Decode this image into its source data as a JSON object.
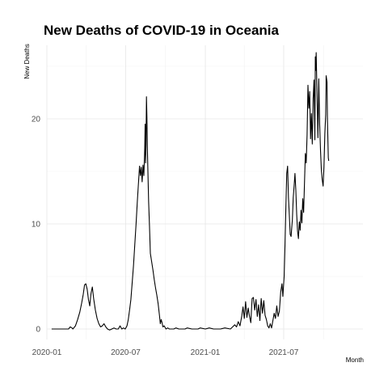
{
  "chart_data": {
    "type": "line",
    "title": "New Deaths of COVID-19 in Oceania",
    "xlabel": "Month",
    "ylabel": "New Deaths",
    "x_tick_labels": [
      "2020-01",
      "2020-07",
      "2021-01",
      "2021-07"
    ],
    "y_tick_labels": [
      "0",
      "10",
      "20"
    ],
    "y_ticks": [
      0,
      10,
      20
    ],
    "xlim": [
      "2020-01-01",
      "2021-12-31"
    ],
    "ylim": [
      -1,
      27
    ],
    "grid": true,
    "series": [
      {
        "color": "#000000",
        "points": [
          [
            "2020-01-12",
            0
          ],
          [
            "2020-02-20",
            0
          ],
          [
            "2020-02-24",
            0.2
          ],
          [
            "2020-02-28",
            0.1
          ],
          [
            "2020-03-01",
            0
          ],
          [
            "2020-03-07",
            0.3
          ],
          [
            "2020-03-12",
            0.9
          ],
          [
            "2020-03-17",
            1.6
          ],
          [
            "2020-03-21",
            2.4
          ],
          [
            "2020-03-25",
            3.3
          ],
          [
            "2020-03-28",
            4.2
          ],
          [
            "2020-03-31",
            4.3
          ],
          [
            "2020-04-03",
            3.8
          ],
          [
            "2020-04-06",
            2.8
          ],
          [
            "2020-04-09",
            2.2
          ],
          [
            "2020-04-12",
            3.4
          ],
          [
            "2020-04-15",
            4.0
          ],
          [
            "2020-04-18",
            2.9
          ],
          [
            "2020-04-22",
            1.8
          ],
          [
            "2020-04-26",
            1.0
          ],
          [
            "2020-04-30",
            0.5
          ],
          [
            "2020-05-04",
            0.2
          ],
          [
            "2020-05-08",
            0.3
          ],
          [
            "2020-05-12",
            0.5
          ],
          [
            "2020-05-16",
            0.2
          ],
          [
            "2020-05-20",
            0
          ],
          [
            "2020-05-25",
            -0.1
          ],
          [
            "2020-05-30",
            0
          ],
          [
            "2020-06-04",
            0.1
          ],
          [
            "2020-06-09",
            0
          ],
          [
            "2020-06-14",
            0
          ],
          [
            "2020-06-18",
            0.3
          ],
          [
            "2020-06-22",
            0
          ],
          [
            "2020-06-26",
            0.1
          ],
          [
            "2020-06-30",
            0
          ],
          [
            "2020-07-04",
            0.3
          ],
          [
            "2020-07-07",
            0.9
          ],
          [
            "2020-07-10",
            1.8
          ],
          [
            "2020-07-13",
            2.8
          ],
          [
            "2020-07-16",
            4.4
          ],
          [
            "2020-07-19",
            6.0
          ],
          [
            "2020-07-22",
            8.0
          ],
          [
            "2020-07-25",
            10.0
          ],
          [
            "2020-07-28",
            12.2
          ],
          [
            "2020-07-31",
            14.2
          ],
          [
            "2020-08-02",
            15.5
          ],
          [
            "2020-08-04",
            14.6
          ],
          [
            "2020-08-06",
            15.4
          ],
          [
            "2020-08-08",
            14.0
          ],
          [
            "2020-08-10",
            15.6
          ],
          [
            "2020-08-12",
            14.6
          ],
          [
            "2020-08-14",
            17.2
          ],
          [
            "2020-08-15",
            19.5
          ],
          [
            "2020-08-16",
            15.8
          ],
          [
            "2020-08-17",
            17.6
          ],
          [
            "2020-08-18",
            22.1
          ],
          [
            "2020-08-19",
            20.2
          ],
          [
            "2020-08-20",
            17.4
          ],
          [
            "2020-08-21",
            15.6
          ],
          [
            "2020-08-23",
            12.1
          ],
          [
            "2020-08-25",
            9.8
          ],
          [
            "2020-08-27",
            7.2
          ],
          [
            "2020-08-30",
            6.4
          ],
          [
            "2020-09-02",
            5.6
          ],
          [
            "2020-09-05",
            4.7
          ],
          [
            "2020-09-08",
            3.9
          ],
          [
            "2020-09-11",
            3.2
          ],
          [
            "2020-09-14",
            2.4
          ],
          [
            "2020-09-17",
            1.3
          ],
          [
            "2020-09-19",
            0.5
          ],
          [
            "2020-09-21",
            0.9
          ],
          [
            "2020-09-23",
            0.6
          ],
          [
            "2020-09-25",
            0.2
          ],
          [
            "2020-09-28",
            0.3
          ],
          [
            "2020-10-02",
            0
          ],
          [
            "2020-10-06",
            0.1
          ],
          [
            "2020-10-10",
            0
          ],
          [
            "2020-10-20",
            0
          ],
          [
            "2020-10-25",
            0.1
          ],
          [
            "2020-11-01",
            0
          ],
          [
            "2020-11-15",
            0
          ],
          [
            "2020-11-20",
            0.1
          ],
          [
            "2020-12-01",
            0
          ],
          [
            "2020-12-15",
            0
          ],
          [
            "2020-12-20",
            0.1
          ],
          [
            "2021-01-01",
            0
          ],
          [
            "2021-01-10",
            0.1
          ],
          [
            "2021-01-20",
            0
          ],
          [
            "2021-02-05",
            0
          ],
          [
            "2021-02-15",
            0.1
          ],
          [
            "2021-02-28",
            0
          ],
          [
            "2021-03-05",
            0.2
          ],
          [
            "2021-03-10",
            0.4
          ],
          [
            "2021-03-14",
            0.2
          ],
          [
            "2021-03-18",
            0.7
          ],
          [
            "2021-03-22",
            0.3
          ],
          [
            "2021-03-26",
            1.2
          ],
          [
            "2021-03-29",
            2.1
          ],
          [
            "2021-04-01",
            1.0
          ],
          [
            "2021-04-04",
            2.6
          ],
          [
            "2021-04-07",
            1.1
          ],
          [
            "2021-04-10",
            2.0
          ],
          [
            "2021-04-13",
            1.2
          ],
          [
            "2021-04-16",
            0.6
          ],
          [
            "2021-04-19",
            2.9
          ],
          [
            "2021-04-22",
            3.0
          ],
          [
            "2021-04-25",
            1.8
          ],
          [
            "2021-04-28",
            2.8
          ],
          [
            "2021-05-01",
            1.2
          ],
          [
            "2021-05-04",
            2.3
          ],
          [
            "2021-05-07",
            0.8
          ],
          [
            "2021-05-10",
            2.9
          ],
          [
            "2021-05-13",
            1.5
          ],
          [
            "2021-05-16",
            2.7
          ],
          [
            "2021-05-19",
            1.3
          ],
          [
            "2021-05-22",
            0.9
          ],
          [
            "2021-05-25",
            0.3
          ],
          [
            "2021-05-28",
            0.1
          ],
          [
            "2021-05-31",
            0.5
          ],
          [
            "2021-06-03",
            0.1
          ],
          [
            "2021-06-06",
            0.8
          ],
          [
            "2021-06-09",
            1.5
          ],
          [
            "2021-06-12",
            1.0
          ],
          [
            "2021-06-15",
            2.2
          ],
          [
            "2021-06-18",
            1.2
          ],
          [
            "2021-06-21",
            1.7
          ],
          [
            "2021-06-24",
            3.5
          ],
          [
            "2021-06-27",
            4.3
          ],
          [
            "2021-06-29",
            3.1
          ],
          [
            "2021-07-02",
            5.0
          ],
          [
            "2021-07-04",
            8.0
          ],
          [
            "2021-07-06",
            11.6
          ],
          [
            "2021-07-08",
            14.8
          ],
          [
            "2021-07-10",
            15.5
          ],
          [
            "2021-07-12",
            12.5
          ],
          [
            "2021-07-14",
            10.8
          ],
          [
            "2021-07-16",
            9.0
          ],
          [
            "2021-07-18",
            8.8
          ],
          [
            "2021-07-21",
            10.4
          ],
          [
            "2021-07-23",
            12.5
          ],
          [
            "2021-07-25",
            13.6
          ],
          [
            "2021-07-27",
            14.8
          ],
          [
            "2021-07-29",
            13.2
          ],
          [
            "2021-07-31",
            10.9
          ],
          [
            "2021-08-02",
            9.3
          ],
          [
            "2021-08-04",
            8.6
          ],
          [
            "2021-08-06",
            10.2
          ],
          [
            "2021-08-08",
            9.4
          ],
          [
            "2021-08-10",
            11.3
          ],
          [
            "2021-08-12",
            10.1
          ],
          [
            "2021-08-14",
            12.4
          ],
          [
            "2021-08-16",
            11.1
          ],
          [
            "2021-08-18",
            13.9
          ],
          [
            "2021-08-20",
            16.7
          ],
          [
            "2021-08-22",
            15.8
          ],
          [
            "2021-08-24",
            18.5
          ],
          [
            "2021-08-26",
            23.2
          ],
          [
            "2021-08-28",
            21.0
          ],
          [
            "2021-08-30",
            22.6
          ],
          [
            "2021-09-01",
            18.1
          ],
          [
            "2021-09-03",
            20.5
          ],
          [
            "2021-09-05",
            17.6
          ],
          [
            "2021-09-07",
            21.9
          ],
          [
            "2021-09-09",
            23.7
          ],
          [
            "2021-09-11",
            18.0
          ],
          [
            "2021-09-12",
            25.9
          ],
          [
            "2021-09-13",
            24.6
          ],
          [
            "2021-09-14",
            26.3
          ],
          [
            "2021-09-16",
            22.2
          ],
          [
            "2021-09-18",
            18.2
          ],
          [
            "2021-09-20",
            23.8
          ],
          [
            "2021-09-22",
            19.5
          ],
          [
            "2021-09-24",
            17.0
          ],
          [
            "2021-09-26",
            15.1
          ],
          [
            "2021-09-28",
            14.2
          ],
          [
            "2021-09-30",
            13.6
          ],
          [
            "2021-10-02",
            15.4
          ],
          [
            "2021-10-04",
            18.6
          ],
          [
            "2021-10-06",
            20.4
          ],
          [
            "2021-10-07",
            24.1
          ],
          [
            "2021-10-09",
            23.5
          ],
          [
            "2021-10-10",
            19.9
          ],
          [
            "2021-10-12",
            16.3
          ],
          [
            "2021-10-13",
            16.0
          ]
        ]
      }
    ]
  }
}
